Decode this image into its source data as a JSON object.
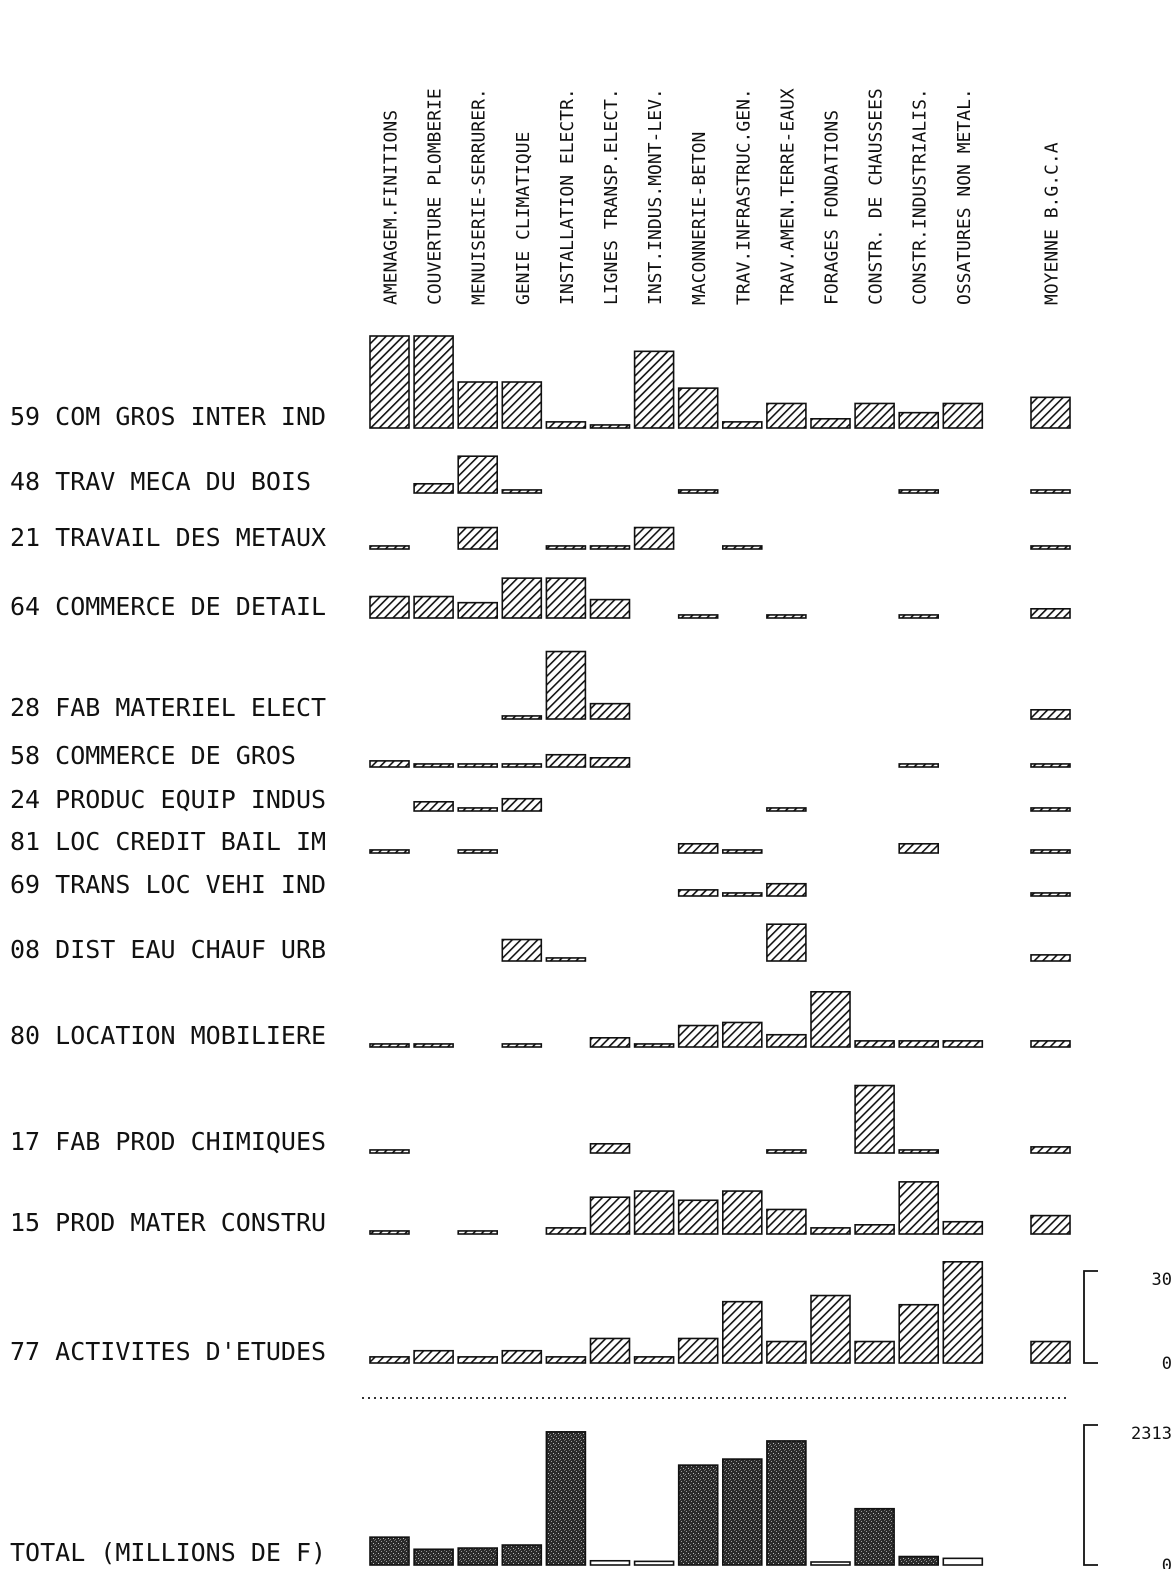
{
  "chart_data": {
    "type": "bar",
    "layout": "small-multiples-matrix",
    "columns": [
      "AMENAGEM.FINITIONS",
      "COUVERTURE PLOMBERIE",
      "MENUISERIE-SERRURER.",
      "GENIE CLIMATIQUE",
      "INSTALLATION ELECTR.",
      "LIGNES TRANSP.ELECT.",
      "INST.INDUS.MONT-LEV.",
      "MACONNERIE-BETON",
      "TRAV.INFRASTRUC.GEN.",
      "TRAV.AMEN.TERRE-EAUX",
      "FORAGES FONDATIONS",
      "CONSTR. DE CHAUSSEES",
      "CONSTR.INDUSTRIALIS.",
      "OSSATURES NON METAL."
    ],
    "average_column": "MOYENNE B.G.C.A",
    "rows": [
      {
        "label": "59 COM GROS INTER IND",
        "values": [
          30,
          30,
          15,
          15,
          2,
          1,
          25,
          13,
          2,
          8,
          3,
          8,
          5,
          8
        ],
        "average": 10
      },
      {
        "label": "48 TRAV MECA DU BOIS",
        "values": [
          null,
          3,
          12,
          1,
          null,
          null,
          null,
          1,
          null,
          null,
          null,
          null,
          1,
          null
        ],
        "average": 1
      },
      {
        "label": "21 TRAVAIL DES METAUX",
        "values": [
          1,
          null,
          7,
          null,
          1,
          1,
          7,
          null,
          1,
          null,
          null,
          null,
          null,
          null
        ],
        "average": 1
      },
      {
        "label": "64 COMMERCE DE DETAIL",
        "values": [
          7,
          7,
          5,
          13,
          13,
          6,
          null,
          1,
          null,
          1,
          null,
          null,
          1,
          null
        ],
        "average": 3
      },
      {
        "label": "28 FAB MATERIEL ELECT",
        "values": [
          null,
          null,
          null,
          1,
          22,
          5,
          null,
          null,
          null,
          null,
          null,
          null,
          null,
          null
        ],
        "average": 3
      },
      {
        "label": "58 COMMERCE DE GROS",
        "values": [
          2,
          1,
          1,
          1,
          4,
          3,
          null,
          null,
          null,
          null,
          null,
          null,
          1,
          null
        ],
        "average": 1
      },
      {
        "label": "24 PRODUC EQUIP INDUS",
        "values": [
          null,
          3,
          1,
          4,
          null,
          null,
          null,
          null,
          null,
          1,
          null,
          null,
          null,
          null
        ],
        "average": 1
      },
      {
        "label": "81 LOC CREDIT BAIL IM",
        "values": [
          1,
          null,
          1,
          null,
          null,
          null,
          null,
          3,
          1,
          null,
          null,
          null,
          3,
          null
        ],
        "average": 1
      },
      {
        "label": "69 TRANS LOC VEHI IND",
        "values": [
          null,
          null,
          null,
          null,
          null,
          null,
          null,
          2,
          1,
          4,
          null,
          null,
          null,
          null
        ],
        "average": 1
      },
      {
        "label": "08 DIST EAU CHAUF URB",
        "values": [
          null,
          null,
          null,
          7,
          1,
          null,
          null,
          null,
          null,
          12,
          null,
          null,
          null,
          null
        ],
        "average": 2
      },
      {
        "label": "80 LOCATION MOBILIERE",
        "values": [
          1,
          1,
          null,
          1,
          null,
          3,
          1,
          7,
          8,
          4,
          18,
          2,
          2,
          2
        ],
        "average": 2
      },
      {
        "label": "17 FAB PROD CHIMIQUES",
        "values": [
          1,
          null,
          null,
          null,
          null,
          3,
          null,
          null,
          null,
          1,
          null,
          22,
          1,
          null
        ],
        "average": 2
      },
      {
        "label": "15 PROD MATER CONSTRU",
        "values": [
          1,
          null,
          1,
          null,
          2,
          12,
          14,
          11,
          14,
          8,
          2,
          3,
          17,
          4
        ],
        "average": 6
      },
      {
        "label": "77 ACTIVITES D'ETUDES",
        "values": [
          2,
          4,
          2,
          4,
          2,
          8,
          2,
          8,
          20,
          7,
          22,
          7,
          19,
          33
        ],
        "average": 7
      }
    ],
    "row_scale": {
      "min_label": "0",
      "max_label": "30",
      "ylim": [
        0,
        30
      ]
    },
    "total": {
      "label": "TOTAL (MILLIONS DE F)",
      "values": [
        460,
        260,
        280,
        330,
        2200,
        70,
        60,
        1650,
        1750,
        2050,
        40,
        930,
        140,
        110
      ],
      "scale": {
        "min_label": "0",
        "max_label": "2313",
        "ylim": [
          0,
          2313
        ]
      }
    }
  }
}
